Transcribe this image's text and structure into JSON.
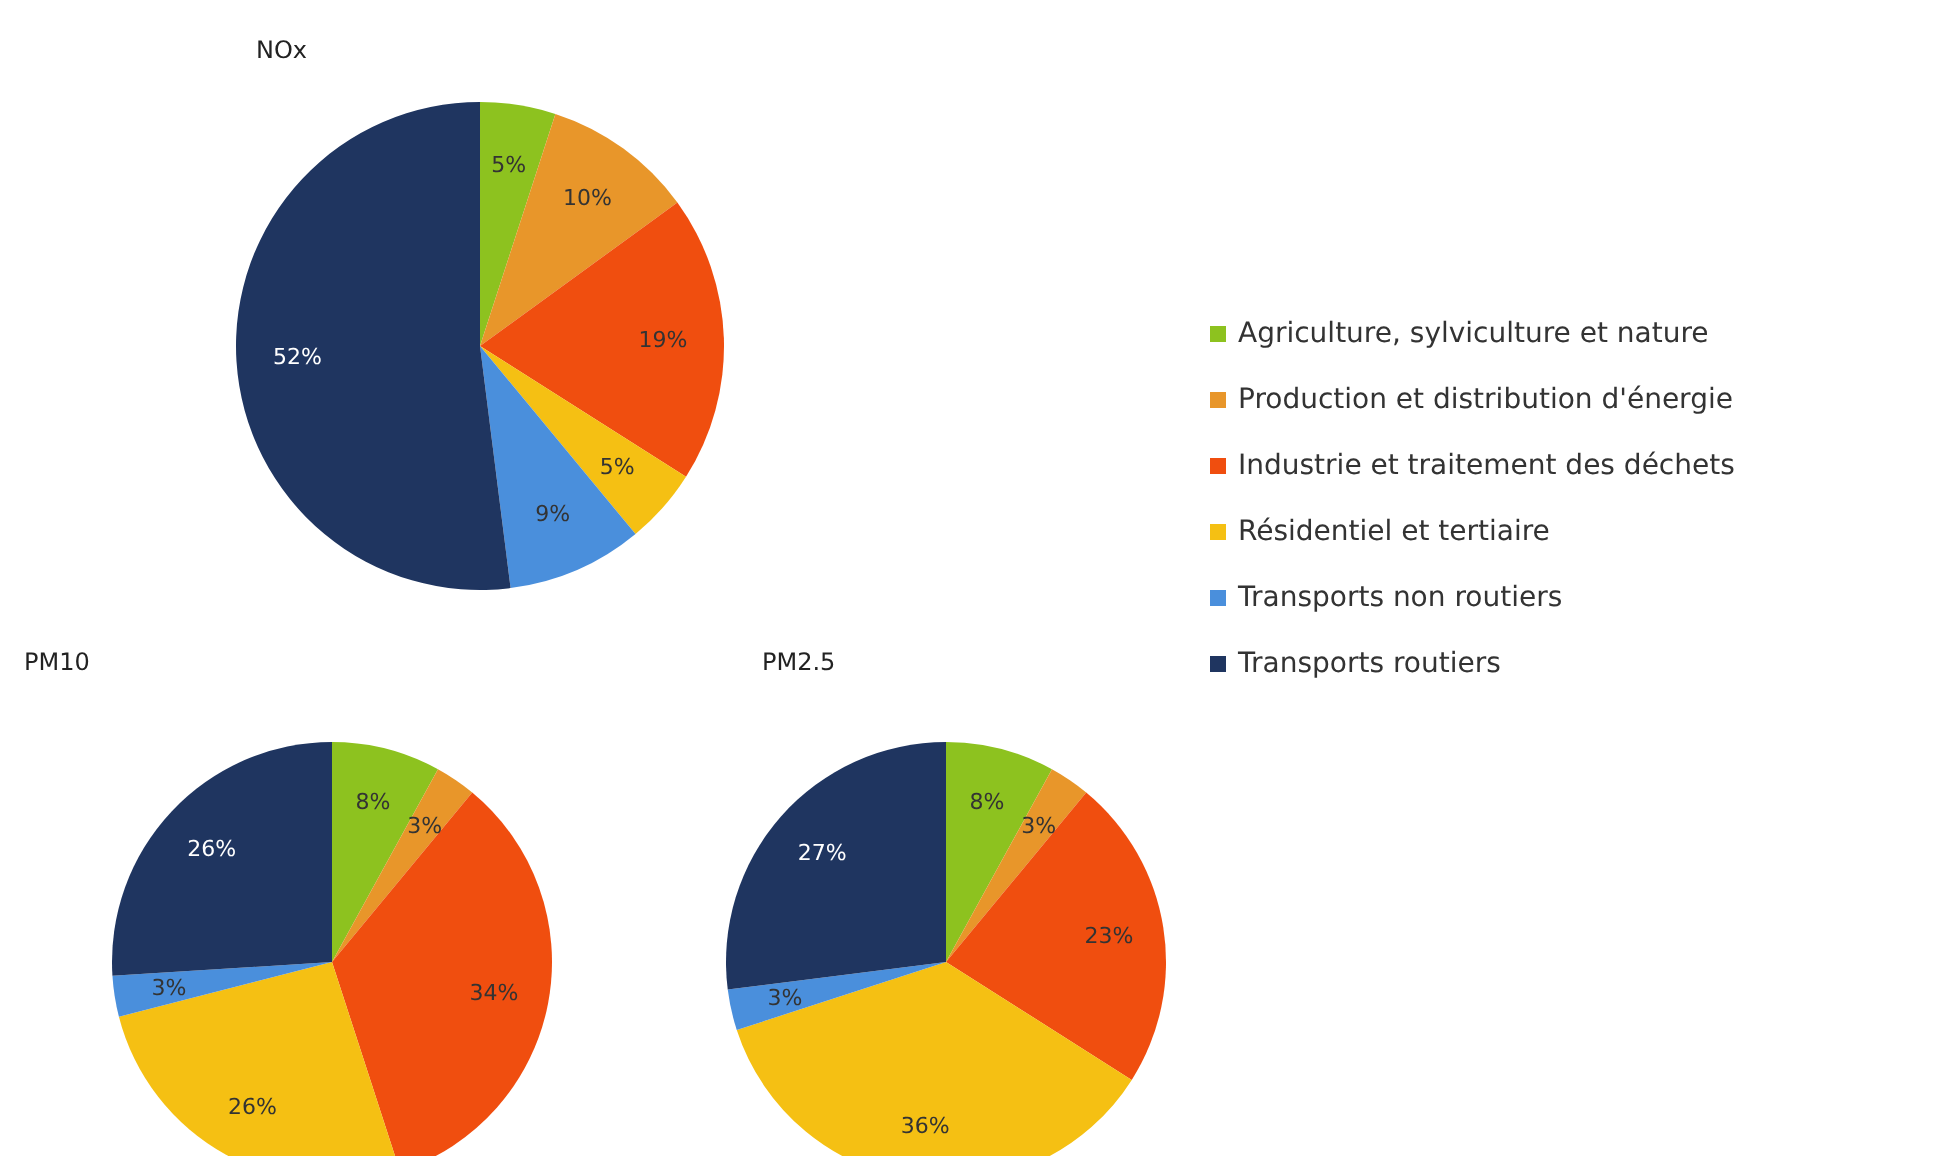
{
  "chart_data": [
    {
      "type": "pie",
      "title": "NOx",
      "categories": [
        "Agriculture, sylviculture et nature",
        "Production et distribution d'énergie",
        "Industrie et traitement des déchets",
        "Résidentiel et tertiaire",
        "Transports non routiers",
        "Transports routiers"
      ],
      "values": [
        5,
        10,
        19,
        5,
        9,
        52
      ],
      "value_labels": [
        "5%",
        "10%",
        "19%",
        "5%",
        "9%",
        "52%"
      ],
      "colors": [
        "#8dc21f",
        "#e8962a",
        "#f04e0f",
        "#f5c013",
        "#4a8fdc",
        "#1f3560"
      ],
      "legend": "right"
    },
    {
      "type": "pie",
      "title": "PM10",
      "categories": [
        null,
        null,
        null,
        null,
        null,
        null
      ],
      "values": [
        8,
        3,
        34,
        26,
        3,
        26
      ],
      "value_labels": [
        "8%",
        "3%",
        "34%",
        "26%",
        "3%",
        "26%"
      ],
      "colors": [
        "#8dc21f",
        "#e8962a",
        "#f04e0f",
        "#f5c013",
        "#4a8fdc",
        "#1f3560"
      ]
    },
    {
      "type": "pie",
      "title": "PM2.5",
      "categories": [
        null,
        null,
        null,
        null,
        null,
        null
      ],
      "values": [
        8,
        3,
        23,
        36,
        3,
        27
      ],
      "value_labels": [
        "8%",
        "3%",
        "23%",
        "36%",
        "3%",
        "27%"
      ],
      "colors": [
        "#8dc21f",
        "#e8962a",
        "#f04e0f",
        "#f5c013",
        "#4a8fdc",
        "#1f3560"
      ]
    }
  ]
}
